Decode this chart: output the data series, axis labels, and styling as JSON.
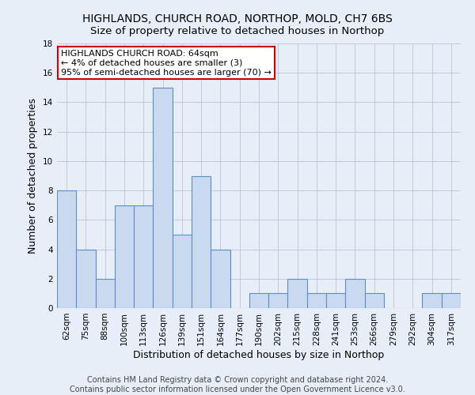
{
  "title": "HIGHLANDS, CHURCH ROAD, NORTHOP, MOLD, CH7 6BS",
  "subtitle": "Size of property relative to detached houses in Northop",
  "xlabel": "Distribution of detached houses by size in Northop",
  "ylabel": "Number of detached properties",
  "bar_labels": [
    "62sqm",
    "75sqm",
    "88sqm",
    "100sqm",
    "113sqm",
    "126sqm",
    "139sqm",
    "151sqm",
    "164sqm",
    "177sqm",
    "190sqm",
    "202sqm",
    "215sqm",
    "228sqm",
    "241sqm",
    "253sqm",
    "266sqm",
    "279sqm",
    "292sqm",
    "304sqm",
    "317sqm"
  ],
  "bar_values": [
    8,
    4,
    2,
    7,
    7,
    15,
    5,
    9,
    4,
    0,
    1,
    1,
    2,
    1,
    1,
    2,
    1,
    0,
    0,
    1,
    1
  ],
  "bar_color": "#c8d9f0",
  "bar_edge_color": "#5b8fc9",
  "ylim": [
    0,
    18
  ],
  "yticks": [
    0,
    2,
    4,
    6,
    8,
    10,
    12,
    14,
    16,
    18
  ],
  "annotation_box_text": "HIGHLANDS CHURCH ROAD: 64sqm\n← 4% of detached houses are smaller (3)\n95% of semi-detached houses are larger (70) →",
  "annotation_box_color": "#ffffff",
  "annotation_box_edge_color": "#cc0000",
  "footer_line1": "Contains HM Land Registry data © Crown copyright and database right 2024.",
  "footer_line2": "Contains public sector information licensed under the Open Government Licence v3.0.",
  "background_color": "#e8eef8",
  "grid_color": "#c0c8d8",
  "title_fontsize": 10,
  "subtitle_fontsize": 9.5,
  "axis_label_fontsize": 9,
  "tick_fontsize": 7.5,
  "footer_fontsize": 7,
  "annotation_fontsize": 8
}
